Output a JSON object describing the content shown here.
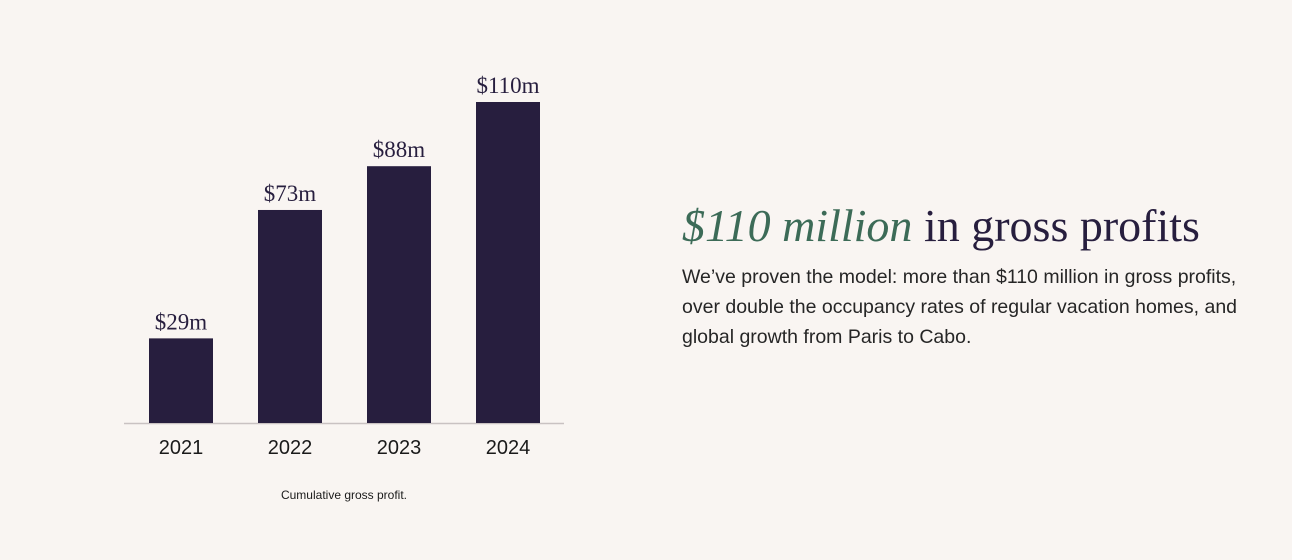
{
  "colors": {
    "background": "#f9f5f2",
    "bar": "#271e3e",
    "accent": "#3c6b57",
    "axis": "#c9c2c2"
  },
  "chart_data": {
    "type": "bar",
    "categories": [
      "2021",
      "2022",
      "2023",
      "2024"
    ],
    "values": [
      29,
      73,
      88,
      110
    ],
    "data_labels": [
      "$29m",
      "$73m",
      "$88m",
      "$110m"
    ],
    "unit": "$m",
    "ylim": [
      0,
      110
    ],
    "grid": false,
    "caption": "Cumulative gross profit."
  },
  "headline": {
    "accent": "$110 million",
    "rest": " in gross profits"
  },
  "body_text": "We’ve proven the model: more than $110 million in gross profits, over double the occupancy rates of regular vacation homes, and global growth from Paris to Cabo."
}
